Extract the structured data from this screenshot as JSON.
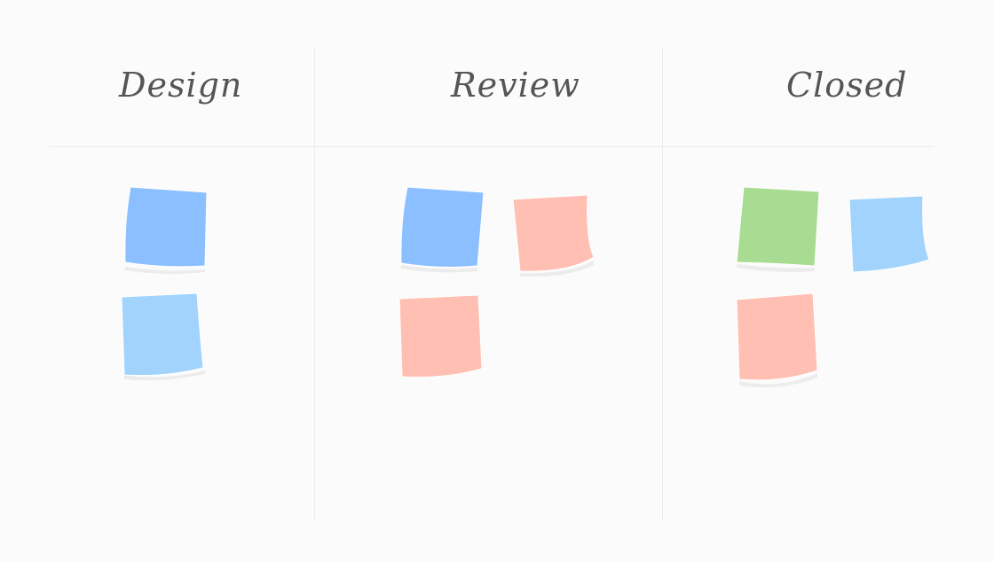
{
  "colors": {
    "blue": "#8bbfff",
    "light_blue": "#a1d3fd",
    "salmon": "#ffbfb2",
    "green": "#a8dc92",
    "shadow": "#ececec"
  },
  "columns": [
    {
      "title": "Design",
      "notes": [
        "blue",
        "light_blue"
      ]
    },
    {
      "title": "Review",
      "notes": [
        "blue",
        "salmon",
        "salmon"
      ]
    },
    {
      "title": "Closed",
      "notes": [
        "green",
        "light_blue",
        "salmon"
      ]
    }
  ]
}
